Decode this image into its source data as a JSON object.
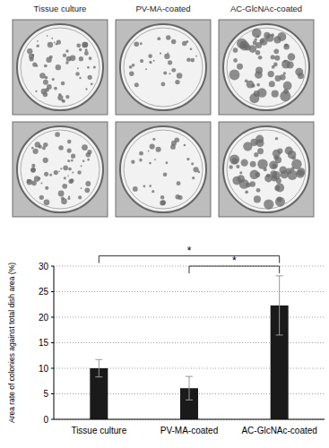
{
  "photos": {
    "columns": [
      "Tissue culture",
      "PV-MA-coated",
      "AC-GlcNAc-coated"
    ]
  },
  "chart_data": {
    "type": "bar",
    "y_label": "Area rate of colonies against total dish area (%)",
    "categories": [
      "Tissue culture",
      "PV-MA-coated",
      "AC-GlcNAc-coated"
    ],
    "values": [
      10,
      6.1,
      22.3
    ],
    "errors": [
      1.7,
      2.3,
      5.8
    ],
    "color": "#1a1a1a",
    "ylim": [
      0,
      30
    ],
    "yticks": [
      0,
      5,
      10,
      15,
      20,
      25,
      30
    ],
    "grid": true,
    "annotations": [
      {
        "text": "*",
        "from": 0,
        "to": 2,
        "y": 32
      },
      {
        "text": "*",
        "from": 1,
        "to": 2,
        "y": 30
      }
    ]
  }
}
